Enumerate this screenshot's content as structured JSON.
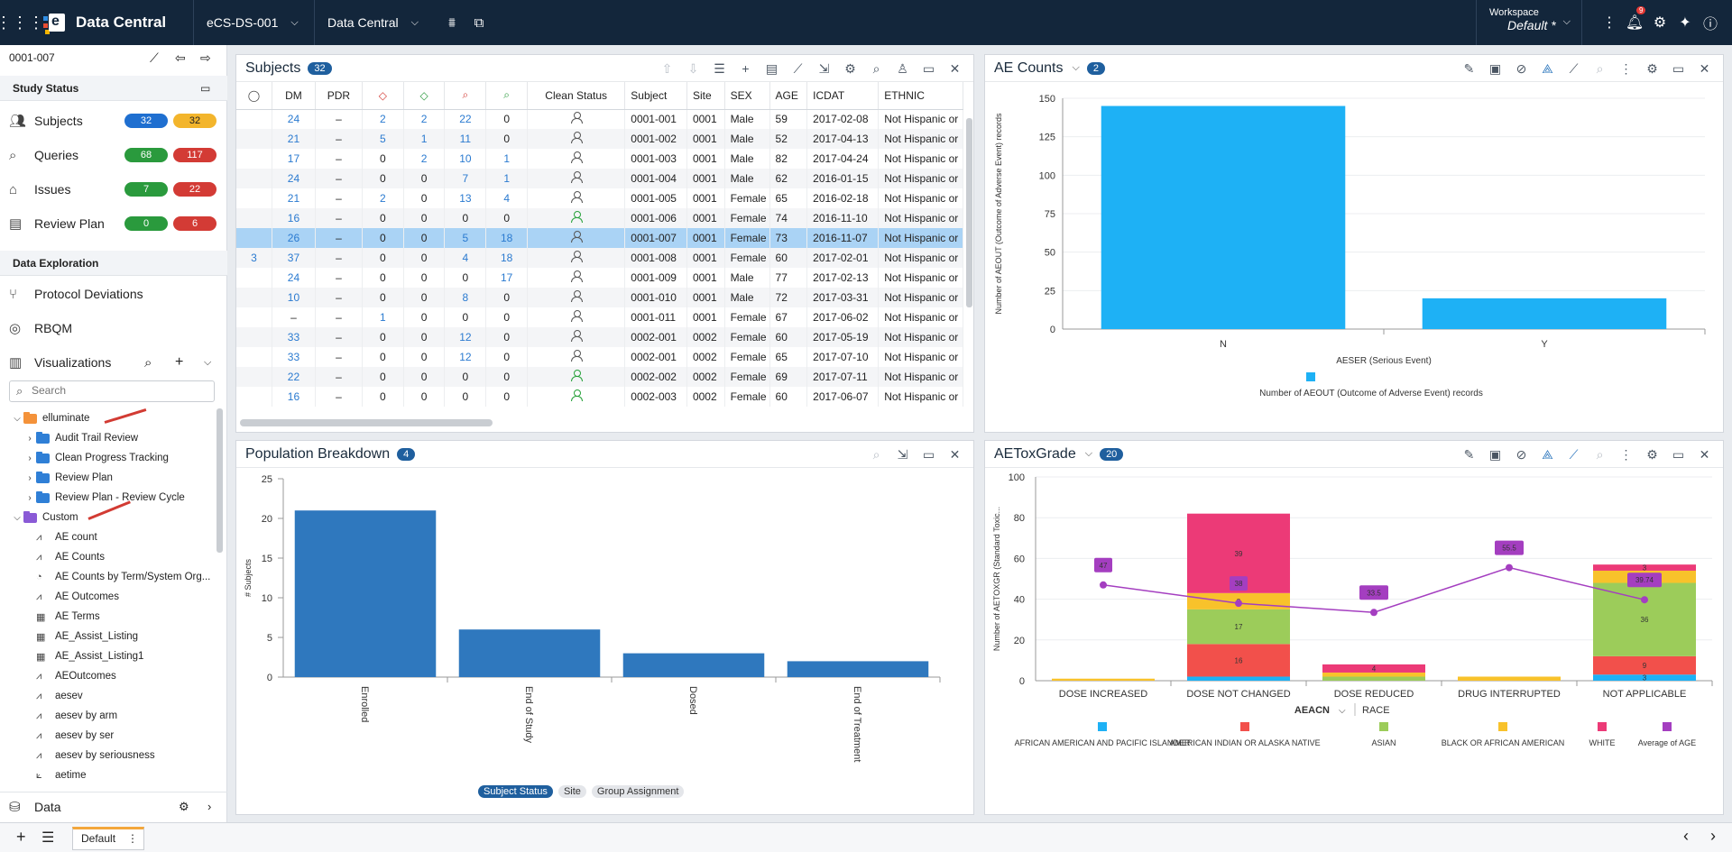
{
  "topbar": {
    "brand": "Data Central",
    "study": "eCS-DS-001",
    "module": "Data Central",
    "workspace_label": "Workspace",
    "workspace_value": "Default",
    "workspace_mark": "*",
    "notif_count": "9"
  },
  "sidebar": {
    "subject_id": "0001-007",
    "study_status": "Study Status",
    "status_items": [
      {
        "label": "Subjects",
        "a": "32",
        "b": "32",
        "icon": "users-icon"
      },
      {
        "label": "Queries",
        "a": "68",
        "b": "117",
        "icon": "query-icon"
      },
      {
        "label": "Issues",
        "a": "7",
        "b": "22",
        "icon": "tag-icon"
      },
      {
        "label": "Review Plan",
        "a": "0",
        "b": "6",
        "icon": "clipboard-icon"
      }
    ],
    "data_exploration": "Data Exploration",
    "protocol_deviations": "Protocol Deviations",
    "rbqm": "RBQM",
    "visualizations": "Visualizations",
    "search_placeholder": "Search",
    "tree": [
      {
        "label": "elluminate",
        "kind": "folder",
        "color": "#f4923a",
        "level": 0,
        "open": true
      },
      {
        "label": "Audit Trail Review",
        "kind": "folder",
        "color": "#2f7fd6",
        "level": 1
      },
      {
        "label": "Clean Progress Tracking",
        "kind": "folder",
        "color": "#2f7fd6",
        "level": 1
      },
      {
        "label": "Review Plan",
        "kind": "folder",
        "color": "#2f7fd6",
        "level": 1
      },
      {
        "label": "Review Plan - Review Cycle",
        "kind": "folder",
        "color": "#2f7fd6",
        "level": 1
      },
      {
        "label": "Custom",
        "kind": "folder",
        "color": "#8a5ad6",
        "level": 0,
        "open": true
      },
      {
        "label": "AE count",
        "kind": "viz",
        "level": 1
      },
      {
        "label": "AE Counts",
        "kind": "viz",
        "level": 1
      },
      {
        "label": "AE Counts by Term/System Org...",
        "kind": "pie",
        "level": 1
      },
      {
        "label": "AE Outcomes",
        "kind": "viz",
        "level": 1
      },
      {
        "label": "AE Terms",
        "kind": "table",
        "level": 1
      },
      {
        "label": "AE_Assist_Listing",
        "kind": "table",
        "level": 1
      },
      {
        "label": "AE_Assist_Listing1",
        "kind": "table",
        "level": 1
      },
      {
        "label": "AEOutcomes",
        "kind": "viz",
        "level": 1
      },
      {
        "label": "aesev",
        "kind": "viz",
        "level": 1
      },
      {
        "label": "aesev by arm",
        "kind": "viz",
        "level": 1
      },
      {
        "label": "aesev by ser",
        "kind": "viz",
        "level": 1
      },
      {
        "label": "aesev by seriousness",
        "kind": "viz",
        "level": 1
      },
      {
        "label": "aetime",
        "kind": "line",
        "level": 1
      }
    ],
    "data": "Data"
  },
  "subjects": {
    "title": "Subjects",
    "count": "32",
    "columns": [
      "",
      "DM",
      "PDR",
      "",
      "",
      "",
      "",
      "Clean Status",
      "Subject",
      "Site",
      "SEX",
      "AGE",
      "ICDAT",
      "ETHNIC"
    ],
    "rows": [
      [
        "",
        "24",
        "–",
        "2",
        "2",
        "22",
        "0",
        "p",
        "0001-001",
        "0001",
        "Male",
        "59",
        "2017-02-08",
        "Not Hispanic or"
      ],
      [
        "",
        "21",
        "–",
        "5",
        "1",
        "11",
        "0",
        "p",
        "0001-002",
        "0001",
        "Male",
        "52",
        "2017-04-13",
        "Not Hispanic or"
      ],
      [
        "",
        "17",
        "–",
        "0",
        "2",
        "10",
        "1",
        "p",
        "0001-003",
        "0001",
        "Male",
        "82",
        "2017-04-24",
        "Not Hispanic or"
      ],
      [
        "",
        "24",
        "–",
        "0",
        "0",
        "7",
        "1",
        "p",
        "0001-004",
        "0001",
        "Male",
        "62",
        "2016-01-15",
        "Not Hispanic or"
      ],
      [
        "",
        "21",
        "–",
        "2",
        "0",
        "13",
        "4",
        "p",
        "0001-005",
        "0001",
        "Female",
        "65",
        "2016-02-18",
        "Not Hispanic or"
      ],
      [
        "",
        "16",
        "–",
        "0",
        "0",
        "0",
        "0",
        "ok",
        "0001-006",
        "0001",
        "Female",
        "74",
        "2016-11-10",
        "Not Hispanic or"
      ],
      [
        "",
        "26",
        "–",
        "0",
        "0",
        "5",
        "18",
        "p",
        "0001-007",
        "0001",
        "Female",
        "73",
        "2016-11-07",
        "Not Hispanic or"
      ],
      [
        "3",
        "37",
        "–",
        "0",
        "0",
        "4",
        "18",
        "p",
        "0001-008",
        "0001",
        "Female",
        "60",
        "2017-02-01",
        "Not Hispanic or"
      ],
      [
        "",
        "24",
        "–",
        "0",
        "0",
        "0",
        "17",
        "p",
        "0001-009",
        "0001",
        "Male",
        "77",
        "2017-02-13",
        "Not Hispanic or"
      ],
      [
        "",
        "10",
        "–",
        "0",
        "0",
        "8",
        "0",
        "p",
        "0001-010",
        "0001",
        "Male",
        "72",
        "2017-03-31",
        "Not Hispanic or"
      ],
      [
        "",
        "–",
        "–",
        "1",
        "0",
        "0",
        "0",
        "p",
        "0001-011",
        "0001",
        "Female",
        "67",
        "2017-06-02",
        "Not Hispanic or"
      ],
      [
        "",
        "33",
        "–",
        "0",
        "0",
        "12",
        "0",
        "p",
        "0002-001",
        "0002",
        "Female",
        "60",
        "2017-05-19",
        "Not Hispanic or"
      ],
      [
        "",
        "33",
        "–",
        "0",
        "0",
        "12",
        "0",
        "p",
        "0002-001",
        "0002",
        "Female",
        "65",
        "2017-07-10",
        "Not Hispanic or"
      ],
      [
        "",
        "22",
        "–",
        "0",
        "0",
        "0",
        "0",
        "ok",
        "0002-002",
        "0002",
        "Female",
        "69",
        "2017-07-11",
        "Not Hispanic or"
      ],
      [
        "",
        "16",
        "–",
        "0",
        "0",
        "0",
        "0",
        "ok",
        "0002-003",
        "0002",
        "Female",
        "60",
        "2017-06-07",
        "Not Hispanic or"
      ]
    ]
  },
  "ae_counts": {
    "title": "AE Counts",
    "count": "2"
  },
  "population": {
    "title": "Population Breakdown",
    "count": "4",
    "tabs": [
      "Subject Status",
      "Site",
      "Group Assignment"
    ]
  },
  "aetox": {
    "title": "AEToxGrade",
    "count": "20",
    "x_selector": "AEACN",
    "x_secondary": "RACE"
  },
  "chart_data": [
    {
      "type": "bar",
      "id": "ae_counts",
      "categories": [
        "N",
        "Y"
      ],
      "values": [
        145,
        20
      ],
      "title": "",
      "xlabel": "AESER  (Serious Event)",
      "ylabel": "Number of AEOUT  (Outcome of Adverse Event) records",
      "ylim": [
        0,
        150
      ],
      "yticks": [
        0,
        25,
        50,
        75,
        100,
        125,
        150
      ],
      "legend": [
        "Number of AEOUT  (Outcome of Adverse Event) records"
      ],
      "color": "#1eb1f5"
    },
    {
      "type": "bar",
      "id": "population",
      "categories": [
        "Enrolled",
        "End of Study",
        "Dosed",
        "End of Treatment"
      ],
      "values": [
        21,
        6,
        3,
        2
      ],
      "title": "",
      "xlabel": "",
      "ylabel": "# Subjects",
      "ylim": [
        0,
        25
      ],
      "yticks": [
        0,
        5,
        10,
        15,
        20,
        25
      ],
      "color": "#2f78be"
    },
    {
      "type": "bar",
      "id": "aetox",
      "stacked": true,
      "categories": [
        "DOSE INCREASED",
        "DOSE NOT CHANGED",
        "DOSE REDUCED",
        "DRUG INTERRUPTED",
        "NOT APPLICABLE"
      ],
      "ylabel": "Number of AETOXGR  (Standard Toxic...",
      "ylim": [
        0,
        100
      ],
      "yticks": [
        0,
        20,
        40,
        60,
        80,
        100
      ],
      "series": [
        {
          "name": "AFRICAN AMERICAN AND PACIFIC ISLANDER",
          "color": "#1eb1f5",
          "values": [
            0,
            2,
            0,
            0,
            3
          ]
        },
        {
          "name": "AMERICAN INDIAN OR ALASKA NATIVE",
          "color": "#f2504b",
          "values": [
            0,
            16,
            0,
            0,
            9
          ]
        },
        {
          "name": "ASIAN",
          "color": "#9ccc5a",
          "values": [
            0,
            17,
            2,
            0,
            36
          ]
        },
        {
          "name": "BLACK OR AFRICAN AMERICAN",
          "color": "#f8c22b",
          "values": [
            1,
            8,
            2,
            2,
            6
          ]
        },
        {
          "name": "WHITE",
          "color": "#ec3a77",
          "values": [
            0,
            39,
            4,
            0,
            3
          ]
        }
      ],
      "line": {
        "name": "Average of AGE",
        "color": "#a43ec0",
        "values": [
          47,
          38,
          33.5,
          55.5,
          39.74
        ]
      },
      "labels": {
        "DOSE INCREASED": [
          "1"
        ],
        "DOSE NOT CHANGED": [
          "2",
          "16",
          "17",
          "8",
          "39"
        ],
        "DOSE REDUCED": [
          "4"
        ],
        "DRUG INTERRUPTED": [
          "2"
        ],
        "NOT APPLICABLE": [
          "3",
          "9",
          "36",
          "3"
        ]
      }
    }
  ],
  "bottombar": {
    "tab": "Default"
  }
}
